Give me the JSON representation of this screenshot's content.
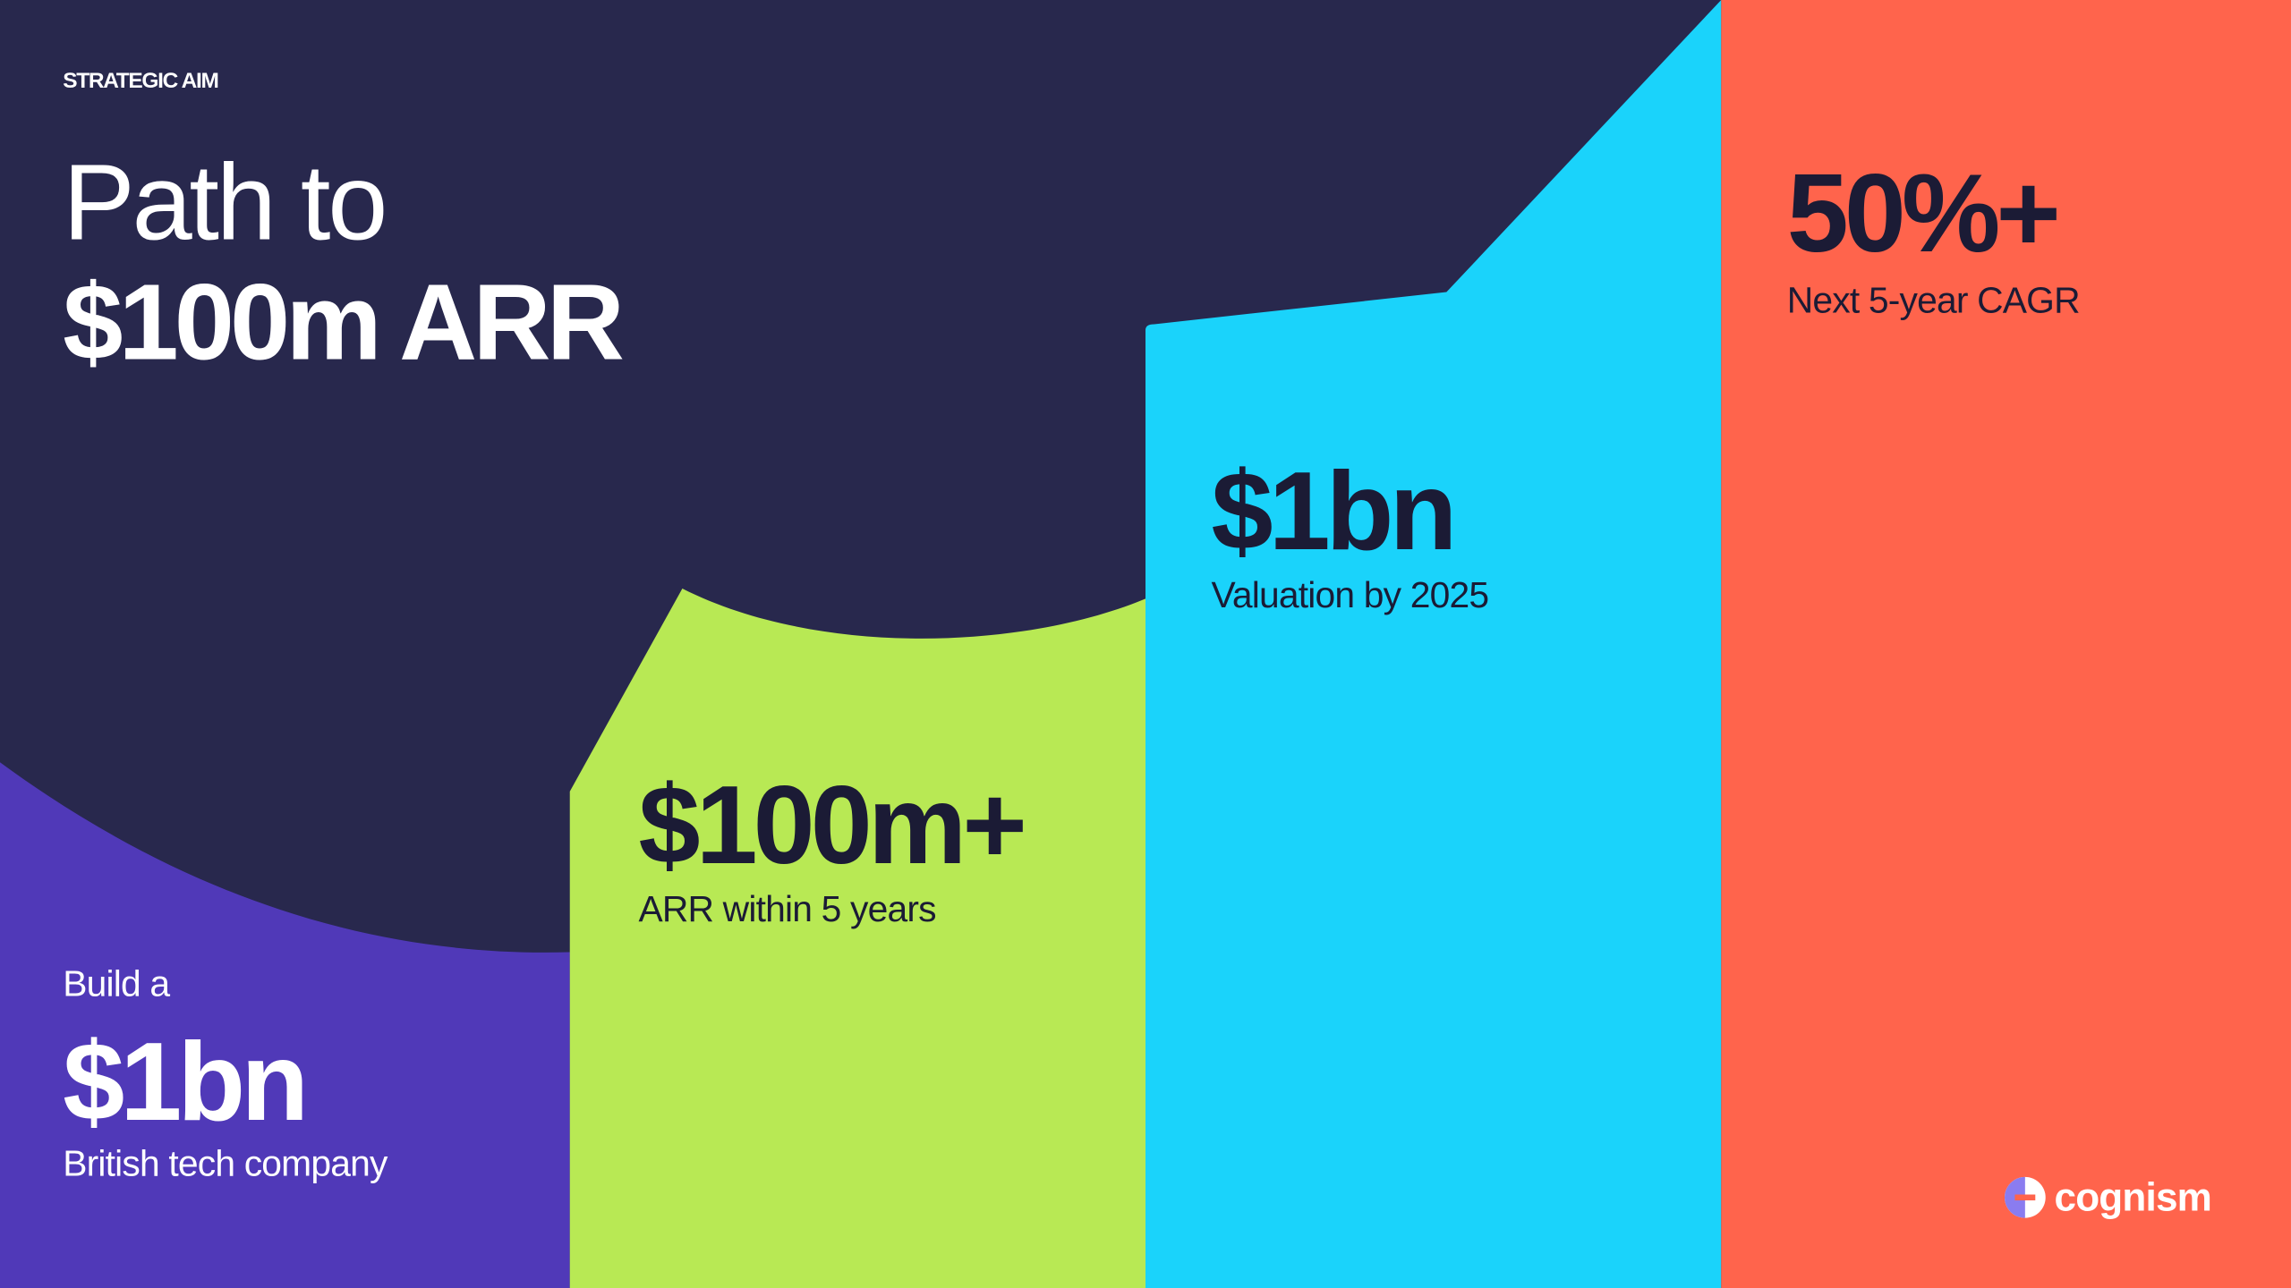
{
  "header": {
    "eyebrow": "STRATEGIC AIM",
    "title_line1": "Path to",
    "title_line2": "$100m ARR"
  },
  "columns": [
    {
      "intro": "Build a",
      "value": "$1bn",
      "caption": "British tech company"
    },
    {
      "value": "$100m+",
      "caption": "ARR within 5 years"
    },
    {
      "value": "$1bn",
      "caption": "Valuation by 2025"
    },
    {
      "value": "50%+",
      "caption": "Next 5-year CAGR"
    }
  ],
  "logo": "cognism"
}
